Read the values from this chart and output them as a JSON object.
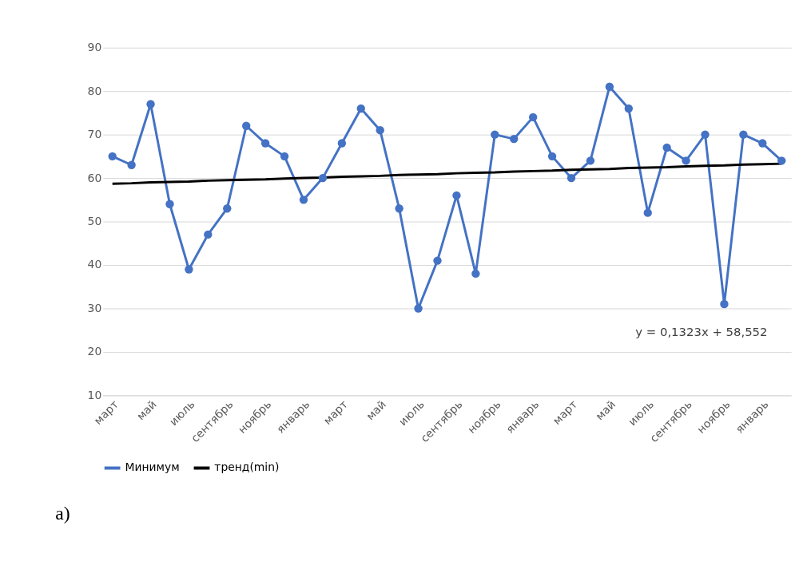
{
  "chart_data": {
    "type": "line",
    "categories": [
      "март",
      null,
      "май",
      null,
      "июль",
      null,
      "сентябрь",
      null,
      "ноябрь",
      null,
      "январь",
      null,
      "март",
      null,
      "май",
      null,
      "июль",
      null,
      "сентябрь",
      null,
      "ноябрь",
      null,
      "январь",
      null,
      "март",
      null,
      "май",
      null,
      "июль",
      null,
      "сентябрь",
      null,
      "ноябрь",
      null,
      "январь",
      null
    ],
    "series": [
      {
        "name": "Минимум",
        "color": "#4472c4",
        "marker": "circle",
        "values": [
          65,
          63,
          77,
          54,
          39,
          47,
          53,
          72,
          68,
          65,
          55,
          60,
          68,
          76,
          71,
          53,
          30,
          41,
          56,
          38,
          70,
          69,
          74,
          65,
          60,
          64,
          81,
          76,
          52,
          67,
          64,
          70,
          31,
          70,
          68,
          64
        ]
      },
      {
        "name": "тренд(min)",
        "color": "#000000",
        "marker": "none",
        "values": [
          58.7,
          58.8,
          59.0,
          59.1,
          59.2,
          59.4,
          59.5,
          59.6,
          59.7,
          59.9,
          60.0,
          60.1,
          60.3,
          60.4,
          60.5,
          60.7,
          60.8,
          60.9,
          61.1,
          61.2,
          61.3,
          61.5,
          61.6,
          61.7,
          61.9,
          62.0,
          62.1,
          62.3,
          62.4,
          62.5,
          62.7,
          62.8,
          62.9,
          63.1,
          63.2,
          63.3
        ]
      }
    ],
    "ylim": [
      10,
      90
    ],
    "yticks": [
      10,
      20,
      30,
      40,
      50,
      60,
      70,
      80,
      90
    ],
    "grid": "y",
    "legend": "bottom",
    "line_style": "solid",
    "annotations": [
      "y = 0,1323x + 58,552",
      "a)"
    ]
  }
}
